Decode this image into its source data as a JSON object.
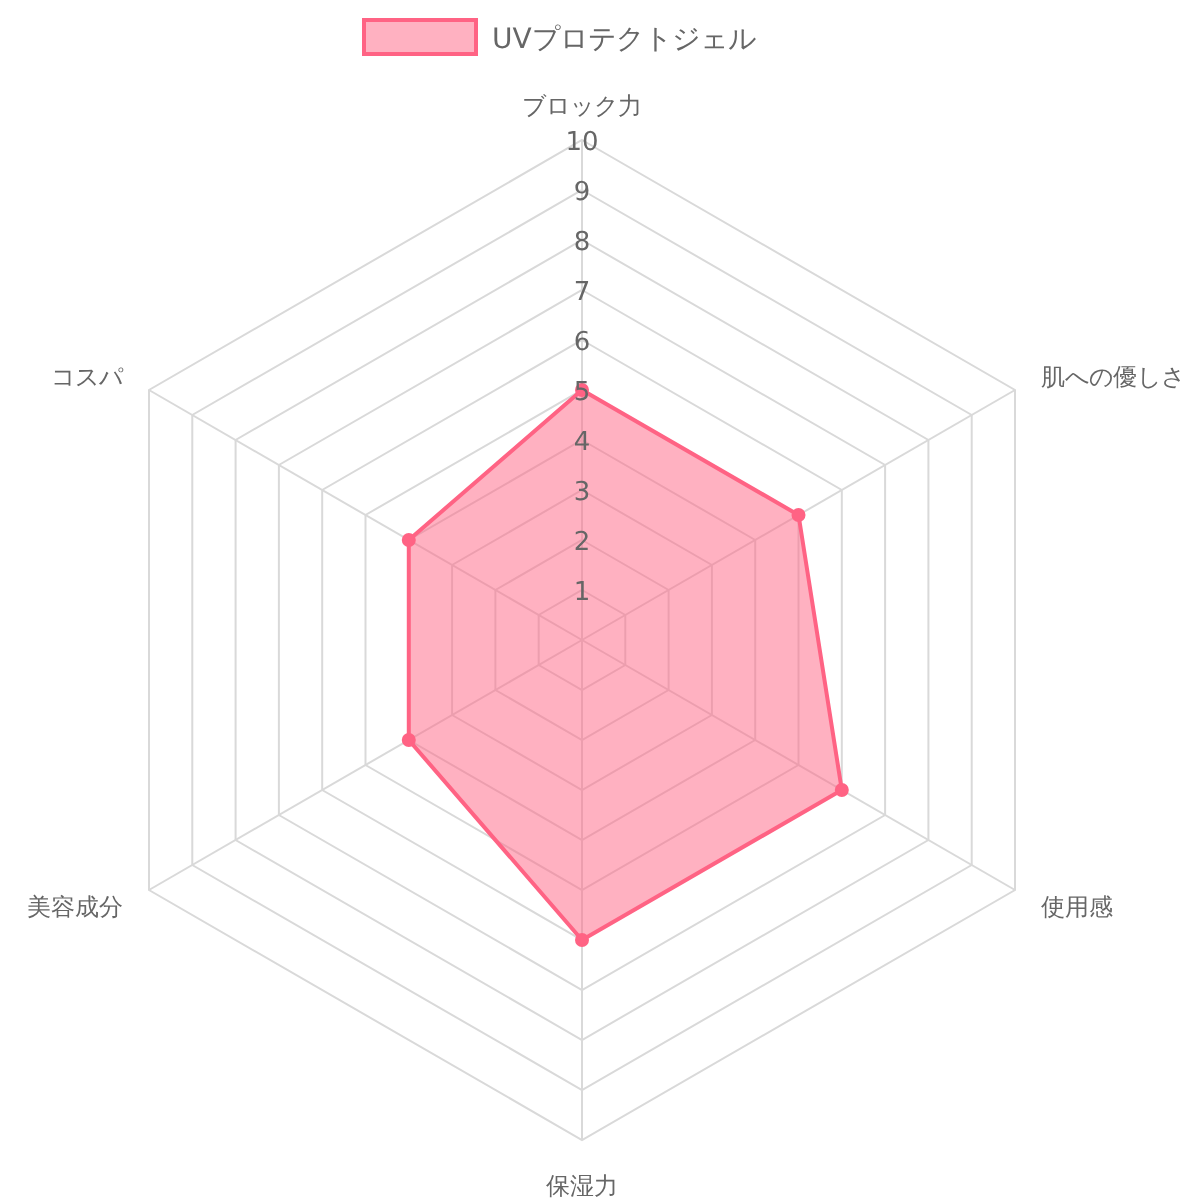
{
  "chart_data": {
    "type": "radar",
    "categories": [
      "ブロック力",
      "肌への優しさ",
      "使用感",
      "保湿力",
      "美容成分",
      "コスパ"
    ],
    "series": [
      {
        "name": "UVプロテクトジェル",
        "color": "#ff6384",
        "values": [
          5,
          5,
          6,
          6,
          4,
          4
        ]
      }
    ],
    "ylim": [
      0,
      10
    ],
    "yticks": [
      1,
      2,
      3,
      4,
      5,
      6,
      7,
      8,
      9,
      10
    ],
    "grid": true,
    "legend": "top",
    "marker": "circle"
  }
}
